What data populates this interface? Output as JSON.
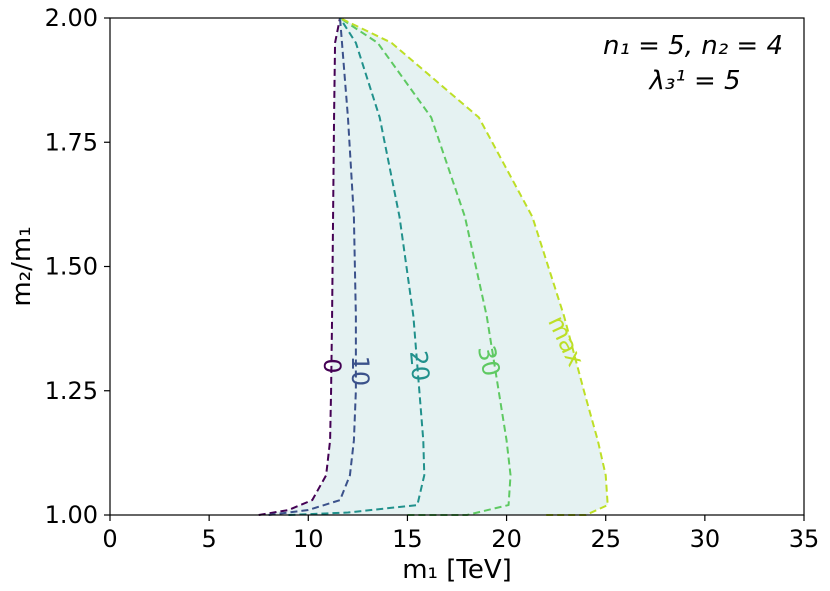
{
  "chart_data": {
    "type": "line",
    "xlabel": "m₁ [TeV]",
    "ylabel": "m₂/m₁",
    "xlim": [
      0,
      35
    ],
    "ylim": [
      1.0,
      2.0
    ],
    "x_ticks": [
      0,
      5,
      10,
      15,
      20,
      25,
      30,
      35
    ],
    "y_ticks": [
      "1.00",
      "1.25",
      "1.50",
      "1.75",
      "2.00"
    ],
    "grid": false,
    "annotations": {
      "line1": "n₁ = 5, n₂ = 4",
      "line2": "λ₃¹ = 5"
    },
    "series": [
      {
        "name": "0",
        "color": "#440154",
        "points": [
          [
            7.5,
            1.0
          ],
          [
            9.0,
            1.01
          ],
          [
            10.2,
            1.03
          ],
          [
            10.9,
            1.08
          ],
          [
            11.1,
            1.15
          ],
          [
            11.15,
            1.25
          ],
          [
            11.2,
            1.4
          ],
          [
            11.25,
            1.6
          ],
          [
            11.3,
            1.8
          ],
          [
            11.35,
            1.95
          ],
          [
            11.6,
            2.0
          ]
        ]
      },
      {
        "name": "10",
        "color": "#3b528b",
        "points": [
          [
            8.0,
            1.0
          ],
          [
            10.0,
            1.01
          ],
          [
            11.6,
            1.03
          ],
          [
            12.1,
            1.08
          ],
          [
            12.3,
            1.15
          ],
          [
            12.4,
            1.25
          ],
          [
            12.4,
            1.4
          ],
          [
            12.3,
            1.6
          ],
          [
            12.0,
            1.8
          ],
          [
            11.7,
            1.95
          ],
          [
            11.6,
            2.0
          ]
        ]
      },
      {
        "name": "20",
        "color": "#21918c",
        "points": [
          [
            9.0,
            1.0
          ],
          [
            12.0,
            1.005
          ],
          [
            15.5,
            1.02
          ],
          [
            15.85,
            1.08
          ],
          [
            15.8,
            1.15
          ],
          [
            15.6,
            1.25
          ],
          [
            15.3,
            1.4
          ],
          [
            14.6,
            1.6
          ],
          [
            13.6,
            1.8
          ],
          [
            12.4,
            1.95
          ],
          [
            11.6,
            2.0
          ]
        ]
      },
      {
        "name": "30",
        "color": "#5ec962",
        "points": [
          [
            15.0,
            1.0
          ],
          [
            18.0,
            1.0
          ],
          [
            20.1,
            1.02
          ],
          [
            20.2,
            1.08
          ],
          [
            20.0,
            1.15
          ],
          [
            19.6,
            1.25
          ],
          [
            19.0,
            1.4
          ],
          [
            17.9,
            1.6
          ],
          [
            16.2,
            1.8
          ],
          [
            13.5,
            1.95
          ],
          [
            11.6,
            2.0
          ]
        ]
      },
      {
        "name": "max",
        "color": "#bddf26",
        "points": [
          [
            22.0,
            1.0
          ],
          [
            24.0,
            1.0
          ],
          [
            25.1,
            1.02
          ],
          [
            25.0,
            1.08
          ],
          [
            24.6,
            1.15
          ],
          [
            23.9,
            1.25
          ],
          [
            22.9,
            1.4
          ],
          [
            21.3,
            1.6
          ],
          [
            18.6,
            1.8
          ],
          [
            14.2,
            1.95
          ],
          [
            11.6,
            2.0
          ]
        ]
      }
    ],
    "fill_region": {
      "color": "#dceeee",
      "opacity": 0.75
    },
    "contour_labels": [
      {
        "text": "0",
        "x": 11.2,
        "y": 1.3,
        "color": "#440154"
      },
      {
        "text": "10",
        "x": 12.6,
        "y": 1.29,
        "color": "#3b528b"
      },
      {
        "text": "20",
        "x": 15.6,
        "y": 1.3,
        "color": "#21918c"
      },
      {
        "text": "30",
        "x": 19.1,
        "y": 1.31,
        "color": "#5ec962"
      },
      {
        "text": "max",
        "x": 23.0,
        "y": 1.35,
        "color": "#bddf26"
      }
    ]
  }
}
